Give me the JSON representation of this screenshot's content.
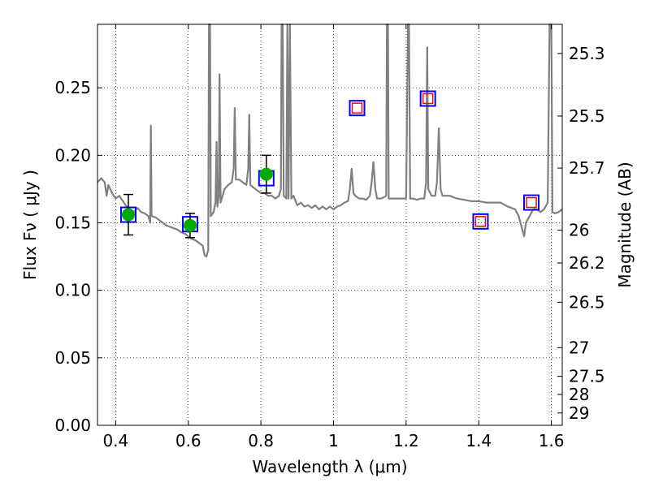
{
  "chart_data": {
    "type": "line",
    "xlabel": "Wavelength  λ (μm)",
    "ylabel": "Flux  Fν  ( μJy )",
    "ylabel_right": "Magnitude (AB)",
    "xlim": [
      0.35,
      1.63
    ],
    "ylim": [
      0.0,
      0.297
    ],
    "grid": true,
    "x_ticks": [
      0.4,
      0.6,
      0.8,
      1.0,
      1.2,
      1.4,
      1.6
    ],
    "x_tick_labels": [
      "0.4",
      "0.6",
      "0.8",
      "1",
      "1.2",
      "1.4",
      "1.6"
    ],
    "y_ticks": [
      0.0,
      0.05,
      0.1,
      0.15,
      0.2,
      0.25
    ],
    "y_tick_labels": [
      "0.00",
      "0.05",
      "0.10",
      "0.15",
      "0.20",
      "0.25"
    ],
    "right_ticks": [
      {
        "mag": 25.3,
        "label": "25.3"
      },
      {
        "mag": 25.5,
        "label": "25.5"
      },
      {
        "mag": 25.7,
        "label": "25.7"
      },
      {
        "mag": 26.0,
        "label": "26"
      },
      {
        "mag": 26.2,
        "label": "26.2"
      },
      {
        "mag": 26.5,
        "label": "26.5"
      },
      {
        "mag": 27.0,
        "label": "27"
      },
      {
        "mag": 27.5,
        "label": "27.5"
      },
      {
        "mag": 28.0,
        "label": "28"
      },
      {
        "mag": 29.0,
        "label": "29"
      }
    ],
    "series": [
      {
        "kind": "spectrum",
        "color": "#808080",
        "points": [
          [
            0.35,
            0.18
          ],
          [
            0.36,
            0.183
          ],
          [
            0.37,
            0.18
          ],
          [
            0.375,
            0.17
          ],
          [
            0.38,
            0.178
          ],
          [
            0.39,
            0.172
          ],
          [
            0.4,
            0.168
          ],
          [
            0.41,
            0.17
          ],
          [
            0.42,
            0.166
          ],
          [
            0.43,
            0.162
          ],
          [
            0.44,
            0.16
          ],
          [
            0.45,
            0.158
          ],
          [
            0.46,
            0.161
          ],
          [
            0.47,
            0.158
          ],
          [
            0.48,
            0.157
          ],
          [
            0.49,
            0.155
          ],
          [
            0.495,
            0.15
          ],
          [
            0.497,
            0.222
          ],
          [
            0.499,
            0.155
          ],
          [
            0.51,
            0.154
          ],
          [
            0.52,
            0.152
          ],
          [
            0.53,
            0.15
          ],
          [
            0.54,
            0.148
          ],
          [
            0.55,
            0.147
          ],
          [
            0.56,
            0.146
          ],
          [
            0.57,
            0.145
          ],
          [
            0.58,
            0.143
          ],
          [
            0.59,
            0.142
          ],
          [
            0.6,
            0.14
          ],
          [
            0.61,
            0.138
          ],
          [
            0.62,
            0.137
          ],
          [
            0.63,
            0.135
          ],
          [
            0.64,
            0.133
          ],
          [
            0.645,
            0.126
          ],
          [
            0.65,
            0.125
          ],
          [
            0.655,
            0.13
          ],
          [
            0.657,
            0.3
          ],
          [
            0.66,
            0.3
          ],
          [
            0.662,
            0.155
          ],
          [
            0.67,
            0.158
          ],
          [
            0.675,
            0.165
          ],
          [
            0.678,
            0.21
          ],
          [
            0.68,
            0.162
          ],
          [
            0.684,
            0.17
          ],
          [
            0.686,
            0.26
          ],
          [
            0.689,
            0.165
          ],
          [
            0.7,
            0.175
          ],
          [
            0.71,
            0.178
          ],
          [
            0.72,
            0.18
          ],
          [
            0.725,
            0.19
          ],
          [
            0.728,
            0.235
          ],
          [
            0.731,
            0.182
          ],
          [
            0.74,
            0.182
          ],
          [
            0.75,
            0.18
          ],
          [
            0.76,
            0.178
          ],
          [
            0.765,
            0.19
          ],
          [
            0.768,
            0.23
          ],
          [
            0.771,
            0.178
          ],
          [
            0.78,
            0.176
          ],
          [
            0.79,
            0.174
          ],
          [
            0.8,
            0.172
          ],
          [
            0.81,
            0.172
          ],
          [
            0.82,
            0.17
          ],
          [
            0.83,
            0.17
          ],
          [
            0.84,
            0.168
          ],
          [
            0.85,
            0.17
          ],
          [
            0.855,
            0.175
          ],
          [
            0.857,
            0.3
          ],
          [
            0.86,
            0.3
          ],
          [
            0.863,
            0.17
          ],
          [
            0.87,
            0.168
          ],
          [
            0.873,
            0.3
          ],
          [
            0.876,
            0.168
          ],
          [
            0.88,
            0.3
          ],
          [
            0.884,
            0.168
          ],
          [
            0.89,
            0.17
          ],
          [
            0.9,
            0.163
          ],
          [
            0.91,
            0.165
          ],
          [
            0.92,
            0.162
          ],
          [
            0.93,
            0.163
          ],
          [
            0.94,
            0.161
          ],
          [
            0.95,
            0.163
          ],
          [
            0.96,
            0.16
          ],
          [
            0.97,
            0.162
          ],
          [
            0.98,
            0.16
          ],
          [
            0.99,
            0.162
          ],
          [
            1.0,
            0.16
          ],
          [
            1.01,
            0.162
          ],
          [
            1.02,
            0.163
          ],
          [
            1.03,
            0.165
          ],
          [
            1.04,
            0.166
          ],
          [
            1.045,
            0.175
          ],
          [
            1.05,
            0.19
          ],
          [
            1.055,
            0.172
          ],
          [
            1.06,
            0.17
          ],
          [
            1.07,
            0.168
          ],
          [
            1.08,
            0.168
          ],
          [
            1.09,
            0.167
          ],
          [
            1.1,
            0.17
          ],
          [
            1.105,
            0.18
          ],
          [
            1.11,
            0.195
          ],
          [
            1.115,
            0.175
          ],
          [
            1.12,
            0.168
          ],
          [
            1.13,
            0.168
          ],
          [
            1.14,
            0.169
          ],
          [
            1.145,
            0.17
          ],
          [
            1.147,
            0.3
          ],
          [
            1.15,
            0.3
          ],
          [
            1.152,
            0.168
          ],
          [
            1.16,
            0.168
          ],
          [
            1.17,
            0.168
          ],
          [
            1.18,
            0.168
          ],
          [
            1.19,
            0.168
          ],
          [
            1.2,
            0.168
          ],
          [
            1.205,
            0.3
          ],
          [
            1.208,
            0.3
          ],
          [
            1.211,
            0.168
          ],
          [
            1.22,
            0.168
          ],
          [
            1.23,
            0.167
          ],
          [
            1.24,
            0.168
          ],
          [
            1.25,
            0.168
          ],
          [
            1.255,
            0.18
          ],
          [
            1.258,
            0.28
          ],
          [
            1.261,
            0.175
          ],
          [
            1.27,
            0.17
          ],
          [
            1.28,
            0.17
          ],
          [
            1.285,
            0.18
          ],
          [
            1.29,
            0.22
          ],
          [
            1.295,
            0.175
          ],
          [
            1.3,
            0.17
          ],
          [
            1.32,
            0.17
          ],
          [
            1.34,
            0.168
          ],
          [
            1.36,
            0.167
          ],
          [
            1.38,
            0.166
          ],
          [
            1.4,
            0.166
          ],
          [
            1.42,
            0.165
          ],
          [
            1.44,
            0.165
          ],
          [
            1.46,
            0.165
          ],
          [
            1.48,
            0.162
          ],
          [
            1.5,
            0.16
          ],
          [
            1.51,
            0.155
          ],
          [
            1.52,
            0.145
          ],
          [
            1.525,
            0.14
          ],
          [
            1.53,
            0.15
          ],
          [
            1.54,
            0.155
          ],
          [
            1.55,
            0.16
          ],
          [
            1.56,
            0.16
          ],
          [
            1.57,
            0.158
          ],
          [
            1.58,
            0.16
          ],
          [
            1.59,
            0.165
          ],
          [
            1.595,
            0.3
          ],
          [
            1.6,
            0.3
          ],
          [
            1.603,
            0.158
          ],
          [
            1.61,
            0.157
          ],
          [
            1.62,
            0.158
          ],
          [
            1.63,
            0.16
          ]
        ]
      },
      {
        "kind": "model_photometry_box",
        "color": "#0000ff",
        "points": [
          [
            0.435,
            0.156
          ],
          [
            0.605,
            0.149
          ],
          [
            0.815,
            0.183
          ],
          [
            1.065,
            0.235
          ],
          [
            1.26,
            0.242
          ],
          [
            1.405,
            0.151
          ],
          [
            1.545,
            0.165
          ]
        ]
      },
      {
        "kind": "upper_limit_box",
        "color": "#ff0000",
        "points": [
          [
            1.065,
            0.235
          ],
          [
            1.26,
            0.242
          ],
          [
            1.405,
            0.151
          ],
          [
            1.545,
            0.165
          ]
        ]
      },
      {
        "kind": "observed_photometry",
        "color": "#00aa00",
        "points": [
          [
            0.435,
            0.156
          ],
          [
            0.605,
            0.148
          ],
          [
            0.815,
            0.186
          ]
        ],
        "errors": [
          0.015,
          0.009,
          0.014
        ]
      }
    ]
  }
}
